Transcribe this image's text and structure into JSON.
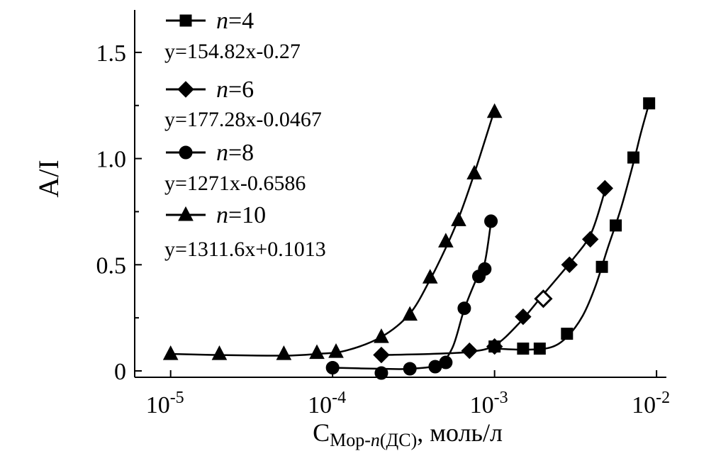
{
  "chart_data": {
    "type": "scatter",
    "x_scale": "log",
    "xlim": [
      6e-06,
      0.0115
    ],
    "ylim": [
      -0.03,
      1.7
    ],
    "x_ticks": [
      {
        "value": 1e-05,
        "base": "10",
        "exp": "-5"
      },
      {
        "value": 0.0001,
        "base": "10",
        "exp": "-4"
      },
      {
        "value": 0.001,
        "base": "10",
        "exp": "-3"
      },
      {
        "value": 0.01,
        "base": "10",
        "exp": "-2"
      }
    ],
    "y_ticks": [
      {
        "value": 0,
        "label": "0"
      },
      {
        "value": 0.5,
        "label": "0.5"
      },
      {
        "value": 1.0,
        "label": "1.0"
      },
      {
        "value": 1.5,
        "label": "1.5"
      }
    ],
    "ylabel": "A/I",
    "xlabel": {
      "main": "C",
      "sub": "Mор-",
      "sub_italic": "n",
      "sub_end": "(ДС)",
      "unit": ", моль/л"
    },
    "grid": false,
    "legend": {
      "position": "top-left"
    },
    "series": [
      {
        "marker": "square",
        "label": {
          "n": "n",
          "value": "=4"
        },
        "equation": "y=154.82x-0.27",
        "points": [
          [
            0.001,
            0.115
          ],
          [
            0.0015,
            0.105
          ],
          [
            0.0019,
            0.105
          ],
          [
            0.0028,
            0.175
          ],
          [
            0.0046,
            0.49
          ],
          [
            0.0056,
            0.685
          ],
          [
            0.0072,
            1.005
          ],
          [
            0.009,
            1.26
          ]
        ]
      },
      {
        "marker": "diamond",
        "label": {
          "n": "n",
          "value": "=6"
        },
        "equation": "y=177.28x-0.0467",
        "points": [
          [
            0.0002,
            0.075
          ],
          [
            0.0007,
            0.095
          ],
          [
            0.001,
            0.115
          ],
          [
            0.0015,
            0.255
          ],
          [
            0.002,
            0.34,
            "open"
          ],
          [
            0.0029,
            0.5
          ],
          [
            0.0039,
            0.62
          ],
          [
            0.0048,
            0.86
          ]
        ]
      },
      {
        "marker": "circle",
        "label": {
          "n": "n",
          "value": "=8"
        },
        "equation": "y=1271x-0.6586",
        "points": [
          [
            0.0001,
            0.015
          ],
          [
            0.0002,
            -0.01
          ],
          [
            0.0003,
            0.01
          ],
          [
            0.00043,
            0.02
          ],
          [
            0.0005,
            0.04
          ],
          [
            0.00065,
            0.295
          ],
          [
            0.0008,
            0.445
          ],
          [
            0.00087,
            0.48
          ],
          [
            0.00095,
            0.705
          ]
        ]
      },
      {
        "marker": "triangle",
        "label": {
          "n": "n",
          "value": "=10"
        },
        "equation": "y=1311.6x+0.1013",
        "points": [
          [
            1e-05,
            0.08
          ],
          [
            2e-05,
            0.08
          ],
          [
            5e-05,
            0.08
          ],
          [
            8e-05,
            0.085
          ],
          [
            0.000105,
            0.09
          ],
          [
            0.0002,
            0.16
          ],
          [
            0.0003,
            0.265
          ],
          [
            0.0004,
            0.44
          ],
          [
            0.0005,
            0.61
          ],
          [
            0.0006,
            0.71
          ],
          [
            0.00075,
            0.93
          ],
          [
            0.001,
            1.22
          ]
        ]
      }
    ],
    "curves": [
      [
        [
          0.00102,
          0.105
        ],
        [
          0.0015,
          0.1
        ],
        [
          0.0022,
          0.11
        ],
        [
          0.0028,
          0.16
        ],
        [
          0.0035,
          0.26
        ],
        [
          0.0042,
          0.4
        ],
        [
          0.005,
          0.58
        ],
        [
          0.006,
          0.76
        ],
        [
          0.0072,
          0.98
        ],
        [
          0.008,
          1.12
        ],
        [
          0.009,
          1.26
        ]
      ],
      [
        [
          0.0002,
          0.075
        ],
        [
          0.0004,
          0.08
        ],
        [
          0.0007,
          0.09
        ],
        [
          0.001,
          0.12
        ],
        [
          0.0014,
          0.22
        ],
        [
          0.002,
          0.36
        ],
        [
          0.003,
          0.52
        ],
        [
          0.0039,
          0.64
        ],
        [
          0.0046,
          0.8
        ],
        [
          0.0048,
          0.86
        ]
      ],
      [
        [
          0.0001,
          0.015
        ],
        [
          0.0002,
          0.01
        ],
        [
          0.0003,
          0.01
        ],
        [
          0.00045,
          0.03
        ],
        [
          0.00055,
          0.11
        ],
        [
          0.00065,
          0.29
        ],
        [
          0.00078,
          0.44
        ],
        [
          0.00087,
          0.51
        ],
        [
          0.00095,
          0.7
        ]
      ],
      [
        [
          1e-05,
          0.08
        ],
        [
          2e-05,
          0.075
        ],
        [
          5e-05,
          0.072
        ],
        [
          8e-05,
          0.08
        ],
        [
          0.00012,
          0.095
        ],
        [
          0.0002,
          0.16
        ],
        [
          0.0003,
          0.27
        ],
        [
          0.0004,
          0.43
        ],
        [
          0.0005,
          0.58
        ],
        [
          0.0006,
          0.72
        ],
        [
          0.00075,
          0.93
        ],
        [
          0.001,
          1.23
        ]
      ]
    ]
  }
}
